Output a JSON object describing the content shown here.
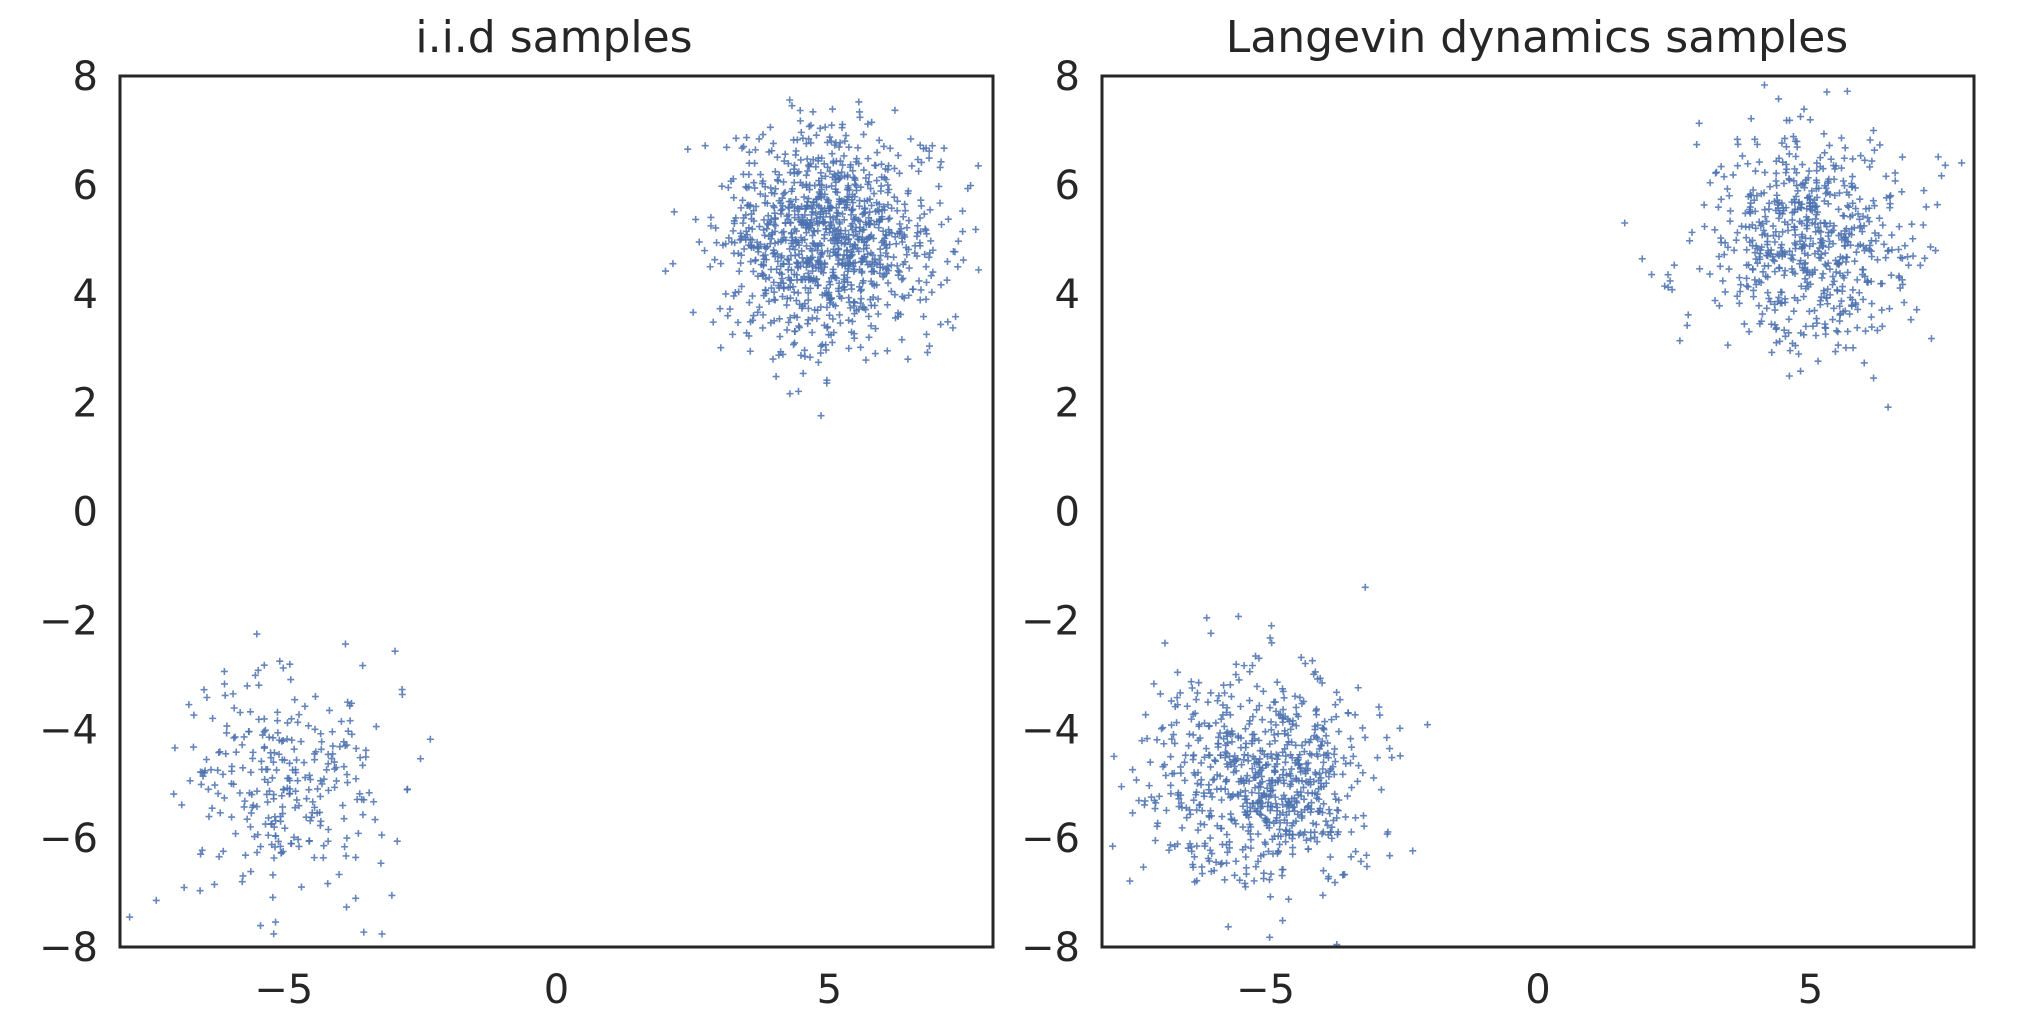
{
  "chart_data": [
    {
      "type": "scatter",
      "title": "i.i.d samples",
      "xlabel": "",
      "ylabel": "",
      "xlim": [
        -8,
        8
      ],
      "ylim": [
        -8,
        8
      ],
      "xticks": [
        -5,
        0,
        5
      ],
      "xtick_labels": [
        "−5",
        "0",
        "5"
      ],
      "yticks": [
        8,
        6,
        4,
        2,
        0,
        -2,
        -4,
        -6,
        -8
      ],
      "ytick_labels": [
        "8",
        "6",
        "4",
        "2",
        "0",
        "−2",
        "−4",
        "−6",
        "−8"
      ],
      "grid": false,
      "marker": "+",
      "color": "#4c72b0",
      "clusters": [
        {
          "center": [
            5.0,
            5.0
          ],
          "std": 1.0,
          "count": 1100
        },
        {
          "center": [
            -5.0,
            -5.0
          ],
          "std": 1.0,
          "count": 300
        }
      ],
      "seed": 7
    },
    {
      "type": "scatter",
      "title": "Langevin dynamics samples",
      "xlabel": "",
      "ylabel": "",
      "xlim": [
        -8,
        8
      ],
      "ylim": [
        -8,
        8
      ],
      "xticks": [
        -5,
        0,
        5
      ],
      "xtick_labels": [
        "−5",
        "0",
        "5"
      ],
      "yticks": [
        8,
        6,
        4,
        2,
        0,
        -2,
        -4,
        -6,
        -8
      ],
      "ytick_labels": [
        "8",
        "6",
        "4",
        "2",
        "0",
        "−2",
        "−4",
        "−6",
        "−8"
      ],
      "grid": false,
      "marker": "+",
      "color": "#4c72b0",
      "clusters": [
        {
          "center": [
            5.0,
            5.0
          ],
          "std": 1.0,
          "count": 650
        },
        {
          "center": [
            -5.0,
            -5.0
          ],
          "std": 1.0,
          "count": 750
        }
      ],
      "seed": 21
    }
  ]
}
